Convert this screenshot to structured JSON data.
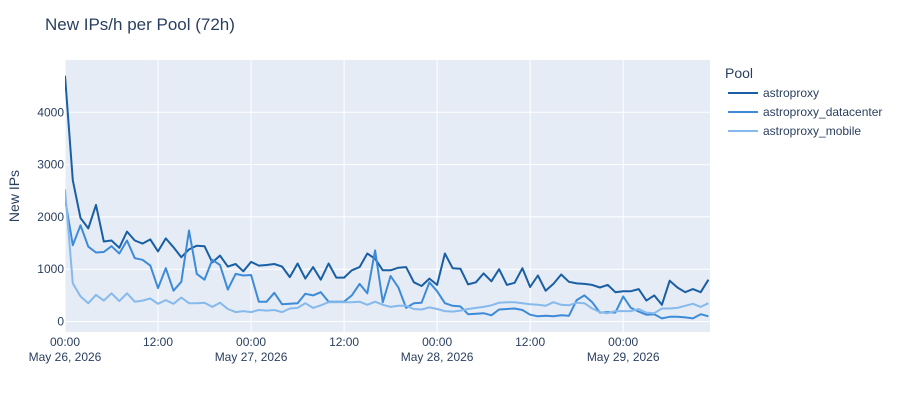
{
  "chart_data": {
    "type": "line",
    "title": "New IPs/h per Pool (72h)",
    "xlabel": "",
    "ylabel": "New IPs",
    "x_start": "May 26, 2026 00:00",
    "x_step_hours": 1,
    "xlim": [
      "May 26, 2026 00:00",
      "May 29, 2026 20:00"
    ],
    "ylim": [
      -200,
      5000
    ],
    "y_ticks": [
      0,
      1000,
      2000,
      3000,
      4000
    ],
    "y_tick_labels": [
      "0",
      "1000",
      "2000",
      "3000",
      "4000"
    ],
    "x_ticks": [
      0,
      12,
      24,
      36,
      48,
      60,
      72
    ],
    "x_tick_labels": [
      [
        "00:00",
        "May 26, 2026"
      ],
      [
        "12:00",
        ""
      ],
      [
        "00:00",
        "May 27, 2026"
      ],
      [
        "12:00",
        ""
      ],
      [
        "00:00",
        "May 28, 2026"
      ],
      [
        "12:00",
        ""
      ],
      [
        "00:00",
        "May 29, 2026"
      ]
    ],
    "grid": true,
    "legend_title": "Pool",
    "legend_position": "right",
    "series": [
      {
        "name": "astroproxy",
        "color": "#1a5fa3",
        "values": [
          4700,
          2700,
          1980,
          1780,
          2230,
          1530,
          1550,
          1410,
          1720,
          1550,
          1490,
          1570,
          1340,
          1590,
          1420,
          1230,
          1380,
          1450,
          1440,
          1130,
          1260,
          1050,
          1100,
          960,
          1140,
          1070,
          1080,
          1100,
          1050,
          850,
          1110,
          820,
          1040,
          800,
          1110,
          840,
          840,
          980,
          1040,
          1300,
          1200,
          980,
          980,
          1030,
          1040,
          750,
          680,
          820,
          700,
          1300,
          1020,
          1010,
          710,
          750,
          920,
          770,
          1000,
          700,
          740,
          1020,
          660,
          880,
          590,
          720,
          900,
          760,
          730,
          720,
          700,
          650,
          700,
          560,
          580,
          580,
          620,
          400,
          500,
          320,
          780,
          650,
          560,
          620,
          560,
          800
        ]
      },
      {
        "name": "astroproxy_datacenter",
        "color": "#3d8bd8",
        "values": [
          2350,
          1460,
          1840,
          1430,
          1320,
          1330,
          1440,
          1300,
          1550,
          1210,
          1180,
          1070,
          640,
          1020,
          590,
          760,
          1740,
          910,
          800,
          1180,
          1080,
          610,
          910,
          880,
          890,
          380,
          380,
          550,
          330,
          340,
          350,
          530,
          500,
          560,
          380,
          380,
          380,
          500,
          720,
          540,
          1360,
          370,
          870,
          650,
          260,
          350,
          360,
          750,
          580,
          350,
          300,
          290,
          140,
          150,
          160,
          120,
          230,
          240,
          250,
          220,
          130,
          100,
          110,
          100,
          120,
          110,
          410,
          500,
          370,
          170,
          180,
          170,
          480,
          260,
          190,
          130,
          140,
          60,
          90,
          90,
          80,
          60,
          140,
          100
        ]
      },
      {
        "name": "astroproxy_mobile",
        "color": "#86b9ec",
        "values": [
          2530,
          730,
          480,
          350,
          510,
          400,
          540,
          390,
          540,
          380,
          400,
          440,
          340,
          410,
          340,
          460,
          350,
          350,
          360,
          280,
          360,
          240,
          180,
          200,
          180,
          220,
          210,
          220,
          180,
          250,
          260,
          350,
          260,
          310,
          370,
          370,
          370,
          370,
          380,
          320,
          380,
          320,
          280,
          300,
          300,
          240,
          230,
          270,
          240,
          200,
          190,
          210,
          240,
          260,
          280,
          310,
          360,
          370,
          370,
          350,
          330,
          320,
          300,
          370,
          320,
          310,
          360,
          350,
          250,
          180,
          160,
          200,
          200,
          200,
          240,
          170,
          160,
          250,
          250,
          260,
          300,
          340,
          280,
          350
        ]
      }
    ]
  }
}
